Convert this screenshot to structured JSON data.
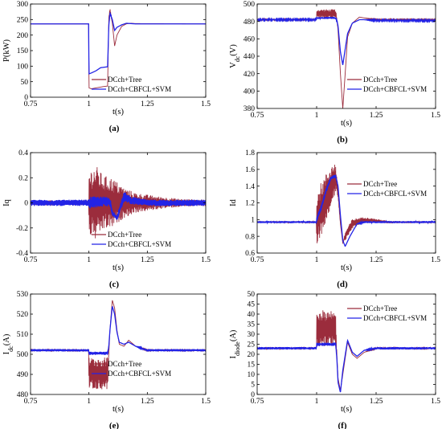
{
  "colors": {
    "tree": "#9b2c3c",
    "cbfcl": "#2323e6"
  },
  "legend": [
    "DCch+Tree",
    "DCch+CBFCL+SVM"
  ],
  "chart_data": [
    {
      "id": "a",
      "type": "line",
      "panel_label": "(a)",
      "ylabel": "P(kW)",
      "xlabel": "t(s)",
      "xlim": [
        0.75,
        1.5
      ],
      "ylim": [
        0,
        300
      ],
      "xticks": [
        "0.75",
        "1",
        "1.25",
        "1.5"
      ],
      "yticks": [
        "0",
        "50",
        "100",
        "150",
        "200",
        "250",
        "300"
      ],
      "legend_position": "lower-right",
      "series": [
        {
          "name": "DCch+Tree",
          "color": "#9b2c3c",
          "x": [
            0.75,
            0.999,
            1.0,
            1.01,
            1.03,
            1.06,
            1.08,
            1.085,
            1.09,
            1.1,
            1.11,
            1.12,
            1.14,
            1.16,
            1.18,
            1.2,
            1.5
          ],
          "y": [
            236,
            236,
            30,
            27,
            30,
            34,
            36,
            255,
            280,
            240,
            165,
            200,
            228,
            236,
            238,
            237,
            236
          ],
          "noise": [
            0,
            0,
            0,
            0,
            0,
            0,
            0,
            0,
            8,
            0,
            0,
            0,
            0,
            0,
            0,
            0,
            0
          ]
        },
        {
          "name": "DCch+CBFCL+SVM",
          "color": "#2323e6",
          "x": [
            0.75,
            0.999,
            1.0,
            1.01,
            1.03,
            1.05,
            1.08,
            1.085,
            1.09,
            1.1,
            1.11,
            1.12,
            1.14,
            1.16,
            1.18,
            1.2,
            1.5
          ],
          "y": [
            236,
            236,
            75,
            78,
            85,
            95,
            98,
            230,
            270,
            250,
            215,
            225,
            233,
            238,
            237,
            236,
            236
          ],
          "noise": [
            0,
            0,
            0,
            0,
            0,
            0,
            0,
            0,
            5,
            0,
            0,
            0,
            0,
            0,
            0,
            0,
            0
          ]
        }
      ]
    },
    {
      "id": "b",
      "type": "line",
      "panel_label": "(b)",
      "ylabel": "V",
      "ylabel_sub": "dc",
      "ylabel_suffix": "(V)",
      "xlabel": "t(s)",
      "xlim": [
        0.75,
        1.5
      ],
      "ylim": [
        380,
        500
      ],
      "xticks": [
        "0.75",
        "1",
        "1.25",
        "1.5"
      ],
      "yticks": [
        "380",
        "400",
        "420",
        "440",
        "460",
        "480",
        "500"
      ],
      "legend_position": "lower-right",
      "series": [
        {
          "name": "DCch+Tree",
          "color": "#9b2c3c",
          "x": [
            0.75,
            0.999,
            1.0,
            1.08,
            1.085,
            1.09,
            1.1,
            1.11,
            1.12,
            1.13,
            1.15,
            1.18,
            1.2,
            1.25,
            1.5
          ],
          "y": [
            482,
            482,
            489,
            489,
            482,
            470,
            420,
            380,
            420,
            462,
            478,
            485,
            484,
            482,
            482
          ],
          "noise": [
            0.8,
            0.8,
            5,
            5,
            2,
            0,
            0,
            0,
            0,
            0,
            0,
            0,
            0,
            0.8,
            0.8
          ]
        },
        {
          "name": "DCch+CBFCL+SVM",
          "color": "#2323e6",
          "x": [
            0.75,
            0.999,
            1.0,
            1.08,
            1.085,
            1.09,
            1.1,
            1.11,
            1.12,
            1.13,
            1.15,
            1.18,
            1.2,
            1.25,
            1.5
          ],
          "y": [
            482,
            482,
            484,
            484,
            481,
            475,
            445,
            430,
            448,
            466,
            478,
            482,
            482,
            481,
            481
          ],
          "noise": [
            0.8,
            0.8,
            1.2,
            1.2,
            1,
            0,
            0,
            0,
            0,
            0,
            0,
            0,
            0,
            0.8,
            0.8
          ]
        }
      ]
    },
    {
      "id": "c",
      "type": "line",
      "panel_label": "(c)",
      "ylabel": "Iq",
      "xlabel": "t(s)",
      "xlim": [
        0.75,
        1.5
      ],
      "ylim": [
        -0.4,
        0.4
      ],
      "xticks": [
        "0.75",
        "1",
        "1.25",
        "1.5"
      ],
      "yticks": [
        "-0.4",
        "-0.2",
        "0",
        "0.2",
        "0.4"
      ],
      "legend_position": "lower-right",
      "series": [
        {
          "name": "DCch+Tree",
          "color": "#9b2c3c",
          "x": [
            0.75,
            0.999,
            1.0,
            1.03,
            1.06,
            1.1,
            1.15,
            1.2,
            1.3,
            1.4,
            1.5
          ],
          "y": [
            0,
            0,
            0,
            0,
            0,
            0,
            0,
            0,
            0,
            0,
            0
          ],
          "noise": [
            0.02,
            0.02,
            0.26,
            0.3,
            0.22,
            0.2,
            0.12,
            0.08,
            0.05,
            0.03,
            0.025
          ]
        },
        {
          "name": "DCch+CBFCL+SVM",
          "color": "#2323e6",
          "x": [
            0.75,
            0.999,
            1.0,
            1.05,
            1.09,
            1.1,
            1.12,
            1.15,
            1.18,
            1.25,
            1.5
          ],
          "y": [
            0,
            0,
            0,
            0.01,
            0.01,
            -0.08,
            -0.12,
            0.05,
            0.02,
            0,
            0
          ],
          "noise": [
            0.025,
            0.025,
            0.05,
            0.04,
            0.04,
            0.02,
            0.02,
            0.04,
            0.03,
            0.025,
            0.025
          ]
        }
      ]
    },
    {
      "id": "d",
      "type": "line",
      "panel_label": "(d)",
      "ylabel": "Id",
      "xlabel": "t(s)",
      "xlim": [
        0.75,
        1.5
      ],
      "ylim": [
        0.6,
        1.8
      ],
      "xticks": [
        "0.75",
        "1",
        "1.25",
        "1.5"
      ],
      "yticks": [
        "0.6",
        "0.8",
        "1",
        "1.2",
        "1.4",
        "1.6",
        "1.8"
      ],
      "legend_position": "right",
      "series": [
        {
          "name": "DCch+Tree",
          "color": "#9b2c3c",
          "x": [
            0.75,
            0.999,
            1.0,
            1.03,
            1.06,
            1.08,
            1.09,
            1.1,
            1.11,
            1.12,
            1.15,
            1.2,
            1.3,
            1.5
          ],
          "y": [
            0.97,
            0.97,
            1.0,
            1.2,
            1.4,
            1.5,
            1.3,
            0.95,
            0.72,
            0.8,
            0.95,
            1.0,
            0.97,
            0.97
          ],
          "noise": [
            0.01,
            0.01,
            0.35,
            0.3,
            0.25,
            0.18,
            0.05,
            0,
            0,
            0.05,
            0.06,
            0.03,
            0.015,
            0.01
          ]
        },
        {
          "name": "DCch+CBFCL+SVM",
          "color": "#2323e6",
          "x": [
            0.75,
            0.999,
            1.0,
            1.02,
            1.04,
            1.06,
            1.08,
            1.09,
            1.1,
            1.11,
            1.12,
            1.14,
            1.17,
            1.2,
            1.5
          ],
          "y": [
            0.97,
            0.97,
            1.0,
            1.15,
            1.35,
            1.5,
            1.52,
            1.4,
            1.05,
            0.75,
            0.68,
            0.8,
            0.95,
            0.97,
            0.97
          ],
          "noise": [
            0.012,
            0.012,
            0.03,
            0.03,
            0.03,
            0.02,
            0.02,
            0,
            0,
            0,
            0,
            0,
            0,
            0.012,
            0.012
          ]
        }
      ]
    },
    {
      "id": "e",
      "type": "line",
      "panel_label": "(e)",
      "ylabel": "I",
      "ylabel_sub": "dc",
      "ylabel_suffix": "(A)",
      "xlabel": "t(s)",
      "xlim": [
        0.75,
        1.5
      ],
      "ylim": [
        480,
        530
      ],
      "xticks": [
        "0.75",
        "1",
        "1.25",
        "1.5"
      ],
      "yticks": [
        "480",
        "490",
        "500",
        "510",
        "520",
        "530"
      ],
      "legend_position": "lower-right",
      "series": [
        {
          "name": "DCch+Tree",
          "color": "#9b2c3c",
          "x": [
            0.75,
            0.999,
            1.0,
            1.08,
            1.085,
            1.09,
            1.1,
            1.11,
            1.12,
            1.13,
            1.15,
            1.17,
            1.2,
            1.25,
            1.5
          ],
          "y": [
            502,
            502,
            490.5,
            490.5,
            500,
            512,
            527,
            523,
            512,
            505,
            504,
            507,
            504,
            502,
            502
          ],
          "noise": [
            0.4,
            0.4,
            8,
            8,
            0,
            0,
            0,
            0,
            0,
            0,
            0,
            0,
            0,
            0.4,
            0.4
          ]
        },
        {
          "name": "DCch+CBFCL+SVM",
          "color": "#2323e6",
          "x": [
            0.75,
            0.999,
            1.0,
            1.08,
            1.085,
            1.09,
            1.1,
            1.11,
            1.12,
            1.13,
            1.15,
            1.17,
            1.2,
            1.25,
            1.5
          ],
          "y": [
            502,
            502,
            500.5,
            500.5,
            504,
            512,
            524,
            520,
            511,
            506,
            505,
            506,
            504,
            502,
            502
          ],
          "noise": [
            0.6,
            0.6,
            0.8,
            0.8,
            0,
            0,
            0,
            0,
            0,
            0,
            0,
            0,
            0,
            0.6,
            0.6
          ]
        }
      ]
    },
    {
      "id": "f",
      "type": "line",
      "panel_label": "(f)",
      "ylabel": "I",
      "ylabel_sub": "diode",
      "ylabel_suffix": "(A)",
      "xlabel": "t(s)",
      "xlim": [
        0.75,
        1.5
      ],
      "ylim": [
        0,
        50
      ],
      "xticks": [
        "0.75",
        "1",
        "1.25",
        "1.5"
      ],
      "yticks": [
        "0",
        "5",
        "10",
        "15",
        "20",
        "25",
        "30",
        "35",
        "40",
        "45",
        "50"
      ],
      "legend_position": "top-right",
      "series": [
        {
          "name": "DCch+Tree",
          "color": "#9b2c3c",
          "x": [
            0.75,
            0.999,
            1.0,
            1.08,
            1.085,
            1.09,
            1.1,
            1.11,
            1.13,
            1.15,
            1.17,
            1.2,
            1.25,
            1.5
          ],
          "y": [
            23,
            23,
            33,
            33,
            20,
            8,
            2,
            10,
            26,
            20,
            18,
            21,
            23,
            23
          ],
          "noise": [
            0.4,
            0.4,
            9,
            9,
            0,
            0,
            0,
            0,
            0,
            0,
            0,
            0,
            0.4,
            0.4
          ]
        },
        {
          "name": "DCch+CBFCL+SVM",
          "color": "#2323e6",
          "x": [
            0.75,
            0.999,
            1.0,
            1.08,
            1.085,
            1.09,
            1.1,
            1.11,
            1.13,
            1.15,
            1.17,
            1.2,
            1.25,
            1.5
          ],
          "y": [
            23,
            23,
            25,
            25,
            18,
            6,
            1,
            12,
            27,
            21,
            19,
            22,
            23,
            23
          ],
          "noise": [
            0.6,
            0.6,
            0.8,
            0.8,
            0,
            0,
            0,
            0,
            0,
            0,
            0,
            0,
            0.6,
            0.6
          ]
        }
      ]
    }
  ]
}
